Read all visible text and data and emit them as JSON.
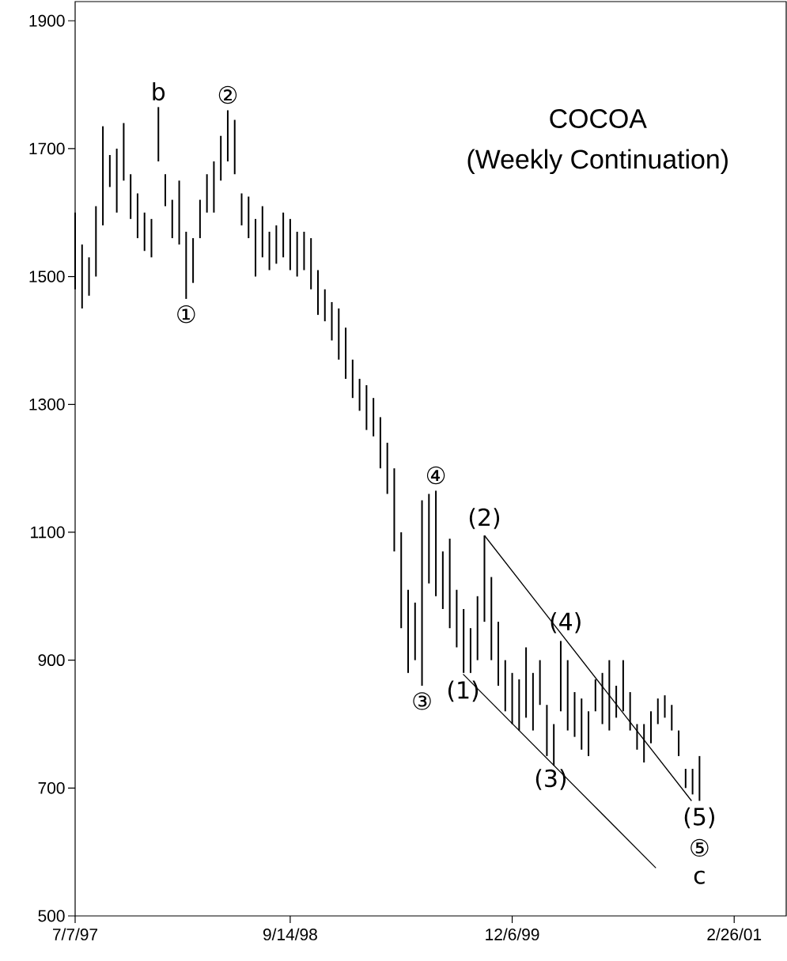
{
  "chart_data": {
    "type": "bar",
    "title": "COCOA",
    "subtitle": "(Weekly Continuation)",
    "xlim": [
      "1997-07-07",
      "2001-06-11"
    ],
    "ylim": [
      500,
      1930
    ],
    "xticks": [
      {
        "value": "1997-07-07",
        "label": "7/7/97"
      },
      {
        "value": "1998-09-14",
        "label": "9/14/98"
      },
      {
        "value": "1999-12-06",
        "label": "12/6/99"
      },
      {
        "value": "2001-02-26",
        "label": "2/26/01"
      }
    ],
    "yticks": [
      500,
      700,
      900,
      1100,
      1300,
      1500,
      1700,
      1900
    ],
    "series": [
      {
        "color": "#000000",
        "x": [
          "1997-07-07",
          "1997-07-21",
          "1997-08-04",
          "1997-08-18",
          "1997-09-01",
          "1997-09-15",
          "1997-09-29",
          "1997-10-13",
          "1997-10-27",
          "1997-11-10",
          "1997-11-24",
          "1997-12-08",
          "1997-12-22",
          "1998-01-05",
          "1998-01-19",
          "1998-02-02",
          "1998-02-16",
          "1998-03-02",
          "1998-03-16",
          "1998-03-30",
          "1998-04-13",
          "1998-04-27",
          "1998-05-11",
          "1998-05-25",
          "1998-06-08",
          "1998-06-22",
          "1998-07-06",
          "1998-07-20",
          "1998-08-03",
          "1998-08-17",
          "1998-08-31",
          "1998-09-14",
          "1998-09-28",
          "1998-10-12",
          "1998-10-26",
          "1998-11-09",
          "1998-11-23",
          "1998-12-07",
          "1998-12-21",
          "1999-01-04",
          "1999-01-18",
          "1999-02-01",
          "1999-02-15",
          "1999-03-01",
          "1999-03-15",
          "1999-03-29",
          "1999-04-12",
          "1999-04-26",
          "1999-05-10",
          "1999-05-24",
          "1999-06-07",
          "1999-06-21",
          "1999-07-05",
          "1999-07-19",
          "1999-08-02",
          "1999-08-16",
          "1999-08-30",
          "1999-09-13",
          "1999-09-27",
          "1999-10-11",
          "1999-10-25",
          "1999-11-08",
          "1999-11-22",
          "1999-12-06",
          "1999-12-20",
          "2000-01-03",
          "2000-01-17",
          "2000-01-31",
          "2000-02-14",
          "2000-02-28",
          "2000-03-13",
          "2000-03-27",
          "2000-04-10",
          "2000-04-24",
          "2000-05-08",
          "2000-05-22",
          "2000-06-05",
          "2000-06-19",
          "2000-07-03",
          "2000-07-17",
          "2000-07-31",
          "2000-08-14",
          "2000-08-28",
          "2000-09-11",
          "2000-09-25",
          "2000-10-09",
          "2000-10-23",
          "2000-11-06",
          "2000-11-20",
          "2000-12-04",
          "2000-12-18"
        ],
        "base": [
          1480,
          1450,
          1470,
          1500,
          1580,
          1640,
          1600,
          1650,
          1590,
          1560,
          1540,
          1530,
          1680,
          1610,
          1560,
          1550,
          1465,
          1490,
          1560,
          1600,
          1600,
          1650,
          1680,
          1660,
          1580,
          1560,
          1500,
          1530,
          1510,
          1520,
          1530,
          1510,
          1500,
          1510,
          1480,
          1440,
          1430,
          1400,
          1370,
          1340,
          1310,
          1290,
          1260,
          1250,
          1200,
          1160,
          1070,
          950,
          880,
          900,
          860,
          1020,
          1000,
          980,
          950,
          920,
          880,
          880,
          900,
          960,
          900,
          860,
          820,
          800,
          790,
          810,
          790,
          830,
          750,
          735,
          820,
          790,
          780,
          760,
          750,
          820,
          800,
          790,
          810,
          820,
          790,
          760,
          740,
          770,
          800,
          810,
          790,
          750,
          700,
          690,
          680
        ],
        "values": [
          120,
          100,
          60,
          110,
          155,
          50,
          100,
          90,
          70,
          70,
          60,
          60,
          85,
          50,
          60,
          100,
          105,
          70,
          60,
          60,
          80,
          70,
          80,
          85,
          50,
          65,
          90,
          80,
          60,
          60,
          70,
          80,
          70,
          60,
          80,
          70,
          50,
          60,
          80,
          80,
          60,
          50,
          70,
          60,
          80,
          80,
          130,
          150,
          130,
          90,
          290,
          140,
          165,
          90,
          140,
          90,
          100,
          70,
          100,
          135,
          130,
          100,
          80,
          80,
          80,
          110,
          90,
          70,
          80,
          65,
          110,
          110,
          70,
          80,
          70,
          50,
          80,
          110,
          50,
          80,
          60,
          40,
          60,
          50,
          40,
          35,
          40,
          40,
          30,
          40,
          70
        ]
      },
      {
        "type": "line",
        "color": "#000000",
        "x": [
          "1999-10-11",
          "2000-12-02"
        ],
        "values": [
          1095,
          680
        ]
      },
      {
        "type": "line",
        "color": "#000000",
        "x": [
          "1999-08-29",
          "2000-09-21"
        ],
        "values": [
          878,
          575
        ]
      }
    ],
    "annotations": [
      {
        "text": "b",
        "x": "1997-12-22",
        "y": 1765
      },
      {
        "text": "②",
        "x": "1998-05-11",
        "y": 1760
      },
      {
        "text": "①",
        "x": "1998-02-16",
        "y": 1465
      },
      {
        "text": "④",
        "x": "1999-07-05",
        "y": 1165
      },
      {
        "text": "③",
        "x": "1999-06-07",
        "y": 860
      },
      {
        "text": "(1)",
        "x": "1999-08-29",
        "y": 878
      },
      {
        "text": "(2)",
        "x": "1999-10-11",
        "y": 1095
      },
      {
        "text": "(4)",
        "x": "2000-03-23",
        "y": 932
      },
      {
        "text": "(3)",
        "x": "2000-02-22",
        "y": 740
      },
      {
        "text": "(5)",
        "x": "2000-12-18",
        "y": 680
      },
      {
        "text": "⑤",
        "x": "2000-12-18",
        "y": 680
      },
      {
        "text": "c",
        "x": "2000-12-18",
        "y": 680
      }
    ]
  }
}
